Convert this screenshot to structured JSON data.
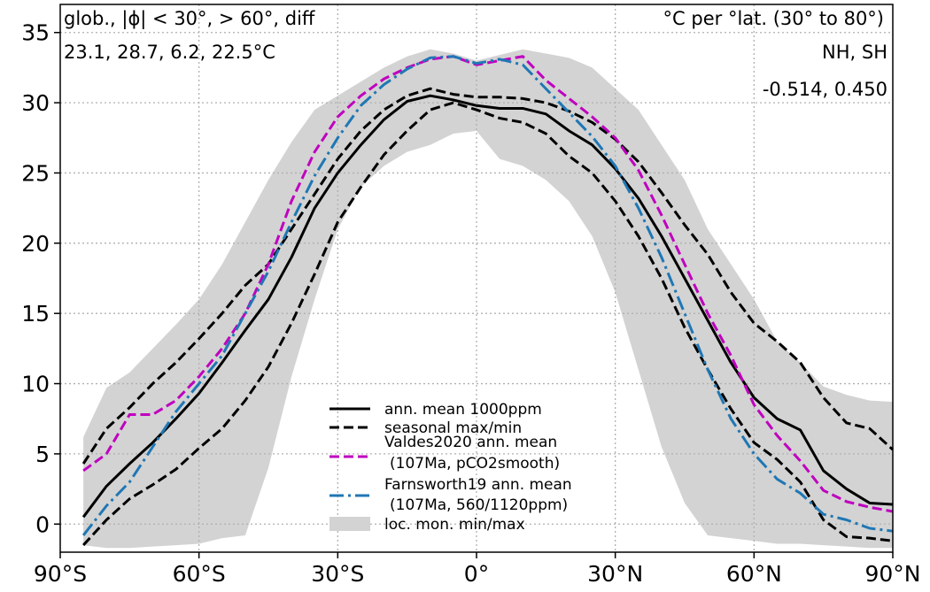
{
  "annotations": {
    "top_left_line1": "glob., |ϕ| < 30°,  > 60°,  diff",
    "top_left_line2": "23.1, 28.7, 6.2, 22.5°C",
    "top_right_line1": "°C per °lat. (30° to 80°)",
    "top_right_line2": "NH, SH",
    "top_right_line3": "-0.514, 0.450"
  },
  "legend": {
    "entries": [
      {
        "id": "ann_mean",
        "label": "ann. mean 1000ppm",
        "color": "#000000",
        "style": "solid"
      },
      {
        "id": "seasonal",
        "label": "seasonal max/min",
        "color": "#000000",
        "style": "dashed"
      },
      {
        "id": "valdes",
        "label": "Valdes2020 ann. mean",
        "label2": "(107Ma, pCO2smooth)",
        "color": "#bf00bf",
        "style": "dashed"
      },
      {
        "id": "farnsworth",
        "label": "Farnsworth19 ann. mean",
        "label2": "(107Ma, 560/1120ppm)",
        "color": "#1f77b4",
        "style": "dashdot"
      },
      {
        "id": "band",
        "label": "loc. mon. min/max",
        "color": "#d3d3d3",
        "style": "fill"
      }
    ]
  },
  "chart_data": {
    "type": "line",
    "title": "",
    "xlabel": "",
    "ylabel": "",
    "xlim": [
      -90,
      90
    ],
    "ylim": [
      -2,
      37
    ],
    "grid": true,
    "grid_style": "dotted",
    "legend_position": "lower-center",
    "x_ticks": [
      {
        "value": -90,
        "label": "90°S"
      },
      {
        "value": -60,
        "label": "60°S"
      },
      {
        "value": -30,
        "label": "30°S"
      },
      {
        "value": 0,
        "label": "0°"
      },
      {
        "value": 30,
        "label": "30°N"
      },
      {
        "value": 60,
        "label": "60°N"
      },
      {
        "value": 90,
        "label": "90°N"
      }
    ],
    "y_ticks": [
      {
        "value": 0,
        "label": "0"
      },
      {
        "value": 5,
        "label": "5"
      },
      {
        "value": 10,
        "label": "10"
      },
      {
        "value": 15,
        "label": "15"
      },
      {
        "value": 20,
        "label": "20"
      },
      {
        "value": 25,
        "label": "25"
      },
      {
        "value": 30,
        "label": "30"
      },
      {
        "value": 35,
        "label": "35"
      }
    ],
    "band": {
      "name": "loc. mon. min/max",
      "color": "#d3d3d3",
      "x": [
        -85,
        -80,
        -75,
        -70,
        -65,
        -60,
        -55,
        -50,
        -45,
        -40,
        -35,
        -30,
        -25,
        -20,
        -15,
        -10,
        -5,
        0,
        5,
        10,
        15,
        20,
        25,
        30,
        35,
        40,
        45,
        50,
        55,
        60,
        65,
        70,
        75,
        80,
        85,
        90
      ],
      "upper": [
        6.2,
        9.7,
        10.8,
        12.5,
        14.2,
        16.0,
        18.5,
        21.5,
        24.5,
        27.2,
        29.5,
        30.5,
        31.5,
        32.5,
        33.3,
        33.8,
        33.5,
        33.0,
        33.4,
        33.8,
        33.5,
        33.2,
        32.5,
        31.0,
        29.5,
        27.0,
        24.5,
        21.0,
        18.5,
        16.0,
        13.0,
        11.5,
        9.8,
        9.2,
        8.8,
        8.7
      ],
      "lower": [
        -1.5,
        -1.7,
        -1.7,
        -1.6,
        -1.5,
        -1.4,
        -1.0,
        -0.8,
        4.0,
        10.5,
        16.0,
        21.0,
        24.0,
        25.5,
        26.5,
        27.0,
        27.8,
        28.0,
        26.0,
        25.5,
        24.5,
        23.0,
        20.5,
        16.5,
        11.0,
        5.5,
        1.5,
        -0.8,
        -1.0,
        -1.2,
        -1.4,
        -1.4,
        -1.5,
        -1.6,
        -1.7,
        -1.7
      ]
    },
    "series": [
      {
        "name": "ann. mean 1000ppm",
        "color": "#000000",
        "style": "solid",
        "x": [
          -85,
          -80,
          -75,
          -70,
          -65,
          -60,
          -55,
          -50,
          -45,
          -40,
          -35,
          -30,
          -25,
          -20,
          -15,
          -10,
          -5,
          0,
          5,
          10,
          15,
          20,
          25,
          30,
          35,
          40,
          45,
          50,
          55,
          60,
          65,
          70,
          75,
          80,
          85,
          90
        ],
        "values": [
          0.5,
          2.7,
          4.3,
          5.8,
          7.5,
          9.3,
          11.5,
          13.8,
          16.0,
          19.0,
          22.5,
          25.0,
          27.0,
          28.8,
          30.1,
          30.5,
          30.2,
          29.8,
          29.6,
          29.6,
          29.2,
          28.0,
          27.0,
          25.3,
          23.2,
          20.5,
          17.5,
          14.5,
          11.5,
          9.0,
          7.5,
          6.7,
          3.8,
          2.5,
          1.5,
          1.4
        ]
      },
      {
        "name": "seasonal max",
        "color": "#000000",
        "style": "dashed",
        "x": [
          -85,
          -80,
          -75,
          -70,
          -65,
          -60,
          -55,
          -50,
          -45,
          -40,
          -35,
          -30,
          -25,
          -20,
          -15,
          -10,
          -5,
          0,
          5,
          10,
          15,
          20,
          25,
          30,
          35,
          40,
          45,
          50,
          55,
          60,
          65,
          70,
          75,
          80,
          85,
          90
        ],
        "values": [
          4.3,
          6.8,
          8.3,
          10.0,
          11.5,
          13.2,
          15.0,
          17.0,
          18.5,
          21.0,
          23.5,
          26.0,
          28.0,
          29.5,
          30.5,
          31.0,
          30.6,
          30.4,
          30.4,
          30.3,
          30.0,
          29.4,
          28.6,
          27.4,
          25.8,
          23.6,
          21.3,
          19.2,
          16.5,
          14.3,
          13.0,
          11.5,
          9.0,
          7.2,
          6.8,
          5.3
        ]
      },
      {
        "name": "seasonal min",
        "color": "#000000",
        "style": "dashed",
        "x": [
          -85,
          -80,
          -75,
          -70,
          -65,
          -60,
          -55,
          -50,
          -45,
          -40,
          -35,
          -30,
          -25,
          -20,
          -15,
          -10,
          -5,
          0,
          5,
          10,
          15,
          20,
          25,
          30,
          35,
          40,
          45,
          50,
          55,
          60,
          65,
          70,
          75,
          80,
          85,
          90
        ],
        "values": [
          -1.5,
          0.3,
          1.8,
          2.8,
          3.9,
          5.4,
          6.8,
          8.8,
          11.2,
          14.3,
          17.8,
          21.5,
          24.0,
          26.3,
          28.0,
          29.5,
          30.0,
          29.5,
          28.9,
          28.6,
          27.8,
          26.2,
          25.0,
          23.0,
          20.5,
          17.5,
          14.0,
          11.0,
          8.2,
          5.8,
          4.6,
          3.0,
          0.3,
          -0.9,
          -1.0,
          -1.2
        ]
      },
      {
        "name": "Valdes2020 ann. mean",
        "color": "#bf00bf",
        "style": "dashed",
        "x": [
          -85,
          -80,
          -75,
          -70,
          -65,
          -60,
          -55,
          -50,
          -45,
          -40,
          -35,
          -30,
          -25,
          -20,
          -15,
          -10,
          -5,
          0,
          5,
          10,
          15,
          20,
          25,
          30,
          35,
          40,
          45,
          50,
          55,
          60,
          65,
          70,
          75,
          80,
          85,
          90
        ],
        "values": [
          3.8,
          5.0,
          7.8,
          7.8,
          8.8,
          10.5,
          12.5,
          15.0,
          18.5,
          23.0,
          26.5,
          29.0,
          30.5,
          31.7,
          32.5,
          33.1,
          33.3,
          32.7,
          33.0,
          33.3,
          31.6,
          30.3,
          29.0,
          27.5,
          25.2,
          22.0,
          18.5,
          15.0,
          12.0,
          8.5,
          6.3,
          4.5,
          2.4,
          1.6,
          1.2,
          0.9
        ]
      },
      {
        "name": "Farnsworth19 ann. mean",
        "color": "#1f77b4",
        "style": "dashdot",
        "x": [
          -85,
          -80,
          -75,
          -70,
          -65,
          -60,
          -55,
          -50,
          -45,
          -40,
          -35,
          -30,
          -25,
          -20,
          -15,
          -10,
          -5,
          0,
          5,
          10,
          15,
          20,
          25,
          30,
          35,
          40,
          45,
          50,
          55,
          60,
          65,
          70,
          75,
          80,
          85,
          90
        ],
        "values": [
          -0.8,
          1.3,
          3.0,
          5.5,
          8.0,
          10.0,
          12.0,
          15.0,
          18.0,
          21.5,
          24.8,
          27.5,
          29.8,
          31.3,
          32.4,
          33.2,
          33.3,
          32.8,
          33.1,
          32.7,
          31.0,
          29.3,
          27.6,
          25.5,
          22.5,
          19.0,
          15.0,
          11.0,
          7.5,
          5.0,
          3.2,
          2.2,
          0.7,
          0.3,
          -0.3,
          -0.5
        ]
      }
    ]
  }
}
